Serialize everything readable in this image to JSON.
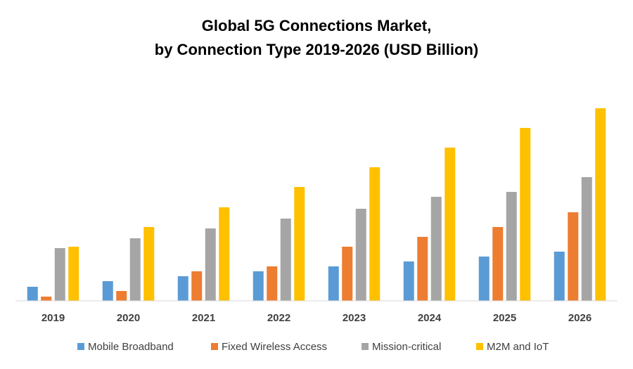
{
  "chart_data": {
    "type": "bar",
    "title": [
      "Global 5G Connections Market,",
      "by Connection Type 2019-2026 (USD Billion)"
    ],
    "categories": [
      "2019",
      "2020",
      "2021",
      "2022",
      "2023",
      "2024",
      "2025",
      "2026"
    ],
    "series": [
      {
        "name": "Mobile Broadband",
        "color": "#5b9bd5",
        "values": [
          20,
          28,
          35,
          42,
          49,
          56,
          63,
          70
        ]
      },
      {
        "name": "Fixed Wireless Access",
        "color": "#ed7d31",
        "values": [
          6,
          14,
          42,
          49,
          77,
          91,
          105,
          126
        ]
      },
      {
        "name": "Mission-critical",
        "color": "#a5a5a5",
        "values": [
          75,
          89,
          103,
          117,
          131,
          148,
          155,
          176
        ]
      },
      {
        "name": "M2M and IoT",
        "color": "#ffc000",
        "values": [
          77,
          105,
          133,
          162,
          190,
          218,
          246,
          274
        ]
      }
    ],
    "ylim": [
      0,
      300
    ]
  }
}
